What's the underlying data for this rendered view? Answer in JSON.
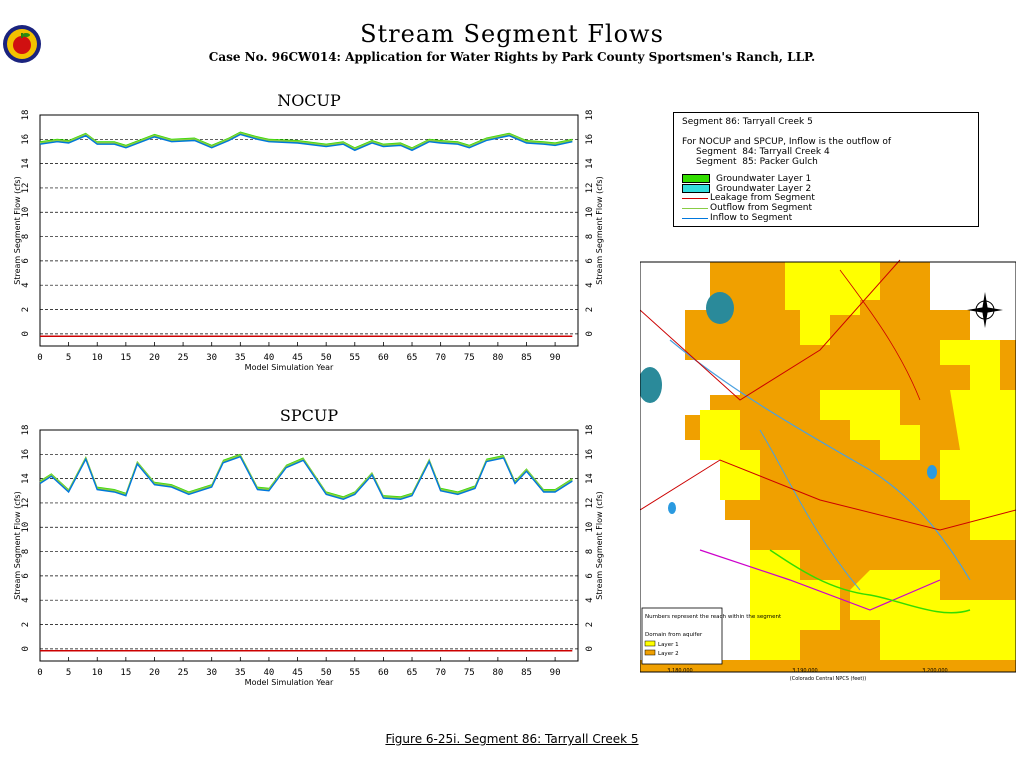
{
  "header": {
    "title": "Stream Segment Flows",
    "subtitle": "Case No. 96CW014: Application for Water Rights by Park County Sportsmen's Ranch, LLP."
  },
  "colors": {
    "groundwater_layer_1": "#33dd00",
    "groundwater_layer_2": "#33dddd",
    "leakage": "#cc0000",
    "outflow": "#88cc44",
    "inflow": "#0077dd",
    "map_orange": "#f0a000",
    "map_yellow": "#ffff00"
  },
  "legend": {
    "segment_title": "Segment 86: Tarryall Creek 5",
    "inflow_note_1": "For NOCUP and SPCUP, Inflow is the outflow of",
    "inflow_note_2": "Segment  84: Tarryall Creek 4",
    "inflow_note_3": "Segment  85: Packer Gulch",
    "items": [
      {
        "label": "Groundwater Layer 1",
        "kind": "swatch",
        "color": "#33dd00"
      },
      {
        "label": "Groundwater Layer 2",
        "kind": "swatch",
        "color": "#33dddd"
      },
      {
        "label": "Leakage from Segment",
        "kind": "line",
        "color": "#cc0000"
      },
      {
        "label": "Outflow from Segment",
        "kind": "line",
        "color": "#88cc44"
      },
      {
        "label": "Inflow to Segment",
        "kind": "line",
        "color": "#0077dd"
      }
    ]
  },
  "chart_data": [
    {
      "type": "line",
      "title": "NOCUP",
      "xlabel": "Model Simulation Year",
      "ylabel": "Stream Segment Flow (cfs)",
      "xlim": [
        0,
        94
      ],
      "ylim": [
        -1,
        18
      ],
      "xticks": [
        0,
        5,
        10,
        15,
        20,
        25,
        30,
        35,
        40,
        45,
        50,
        55,
        60,
        65,
        70,
        75,
        80,
        85,
        90
      ],
      "yticks": [
        0,
        2,
        4,
        6,
        8,
        10,
        12,
        14,
        16,
        18
      ],
      "grid": "horizontal dashed",
      "series": [
        {
          "name": "Inflow to Segment",
          "x": [
            0,
            3,
            5,
            8,
            10,
            13,
            15,
            20,
            23,
            27,
            30,
            33,
            35,
            38,
            40,
            45,
            50,
            53,
            55,
            58,
            60,
            63,
            65,
            68,
            70,
            73,
            75,
            78,
            80,
            82,
            85,
            88,
            90,
            93
          ],
          "y": [
            15.6,
            15.8,
            15.7,
            16.3,
            15.6,
            15.6,
            15.3,
            16.2,
            15.8,
            15.9,
            15.3,
            15.9,
            16.4,
            16.0,
            15.8,
            15.7,
            15.4,
            15.6,
            15.1,
            15.7,
            15.4,
            15.5,
            15.1,
            15.8,
            15.7,
            15.6,
            15.3,
            15.9,
            16.1,
            16.3,
            15.7,
            15.6,
            15.5,
            15.8
          ]
        },
        {
          "name": "Leakage from Segment",
          "x": [
            0,
            20,
            40,
            60,
            80,
            93
          ],
          "y": [
            -0.2,
            -0.2,
            -0.2,
            -0.2,
            -0.2,
            -0.2
          ]
        }
      ]
    },
    {
      "type": "line",
      "title": "SPCUP",
      "xlabel": "Model Simulation Year",
      "ylabel": "Stream Segment Flow (cfs)",
      "xlim": [
        0,
        94
      ],
      "ylim": [
        -1,
        18
      ],
      "xticks": [
        0,
        5,
        10,
        15,
        20,
        25,
        30,
        35,
        40,
        45,
        50,
        55,
        60,
        65,
        70,
        75,
        80,
        85,
        90
      ],
      "yticks": [
        0,
        2,
        4,
        6,
        8,
        10,
        12,
        14,
        16,
        18
      ],
      "grid": "horizontal dashed",
      "series": [
        {
          "name": "Inflow to Segment",
          "x": [
            0,
            2,
            5,
            8,
            10,
            13,
            15,
            17,
            20,
            23,
            26,
            30,
            32,
            35,
            38,
            40,
            43,
            46,
            50,
            53,
            55,
            58,
            60,
            63,
            65,
            68,
            70,
            73,
            76,
            78,
            81,
            83,
            85,
            88,
            90,
            93
          ],
          "y": [
            13.6,
            14.2,
            12.9,
            15.6,
            13.1,
            12.9,
            12.6,
            15.2,
            13.5,
            13.3,
            12.7,
            13.3,
            15.3,
            15.8,
            13.1,
            13.0,
            14.9,
            15.5,
            12.7,
            12.3,
            12.7,
            14.3,
            12.4,
            12.3,
            12.6,
            15.4,
            13.0,
            12.7,
            13.2,
            15.4,
            15.7,
            13.6,
            14.6,
            12.9,
            12.9,
            13.8
          ]
        },
        {
          "name": "Leakage from Segment",
          "x": [
            0,
            20,
            40,
            60,
            80,
            93
          ],
          "y": [
            -0.15,
            -0.15,
            -0.15,
            -0.15,
            -0.15,
            -0.15
          ]
        }
      ]
    }
  ],
  "map": {
    "inset_label": "Numbers represent the reach within the segment",
    "inset_legend_title": "Domain from aquifer",
    "inset_legend_items": [
      "Layer 1",
      "Layer 2"
    ],
    "bottom_label": "(Colorado Central NPCS (feet))",
    "easting_labels": [
      "3,180,000",
      "3,190,000",
      "3,200,000"
    ]
  },
  "figure_caption": "Figure 6-25i.  Segment 86: Tarryall Creek 5"
}
